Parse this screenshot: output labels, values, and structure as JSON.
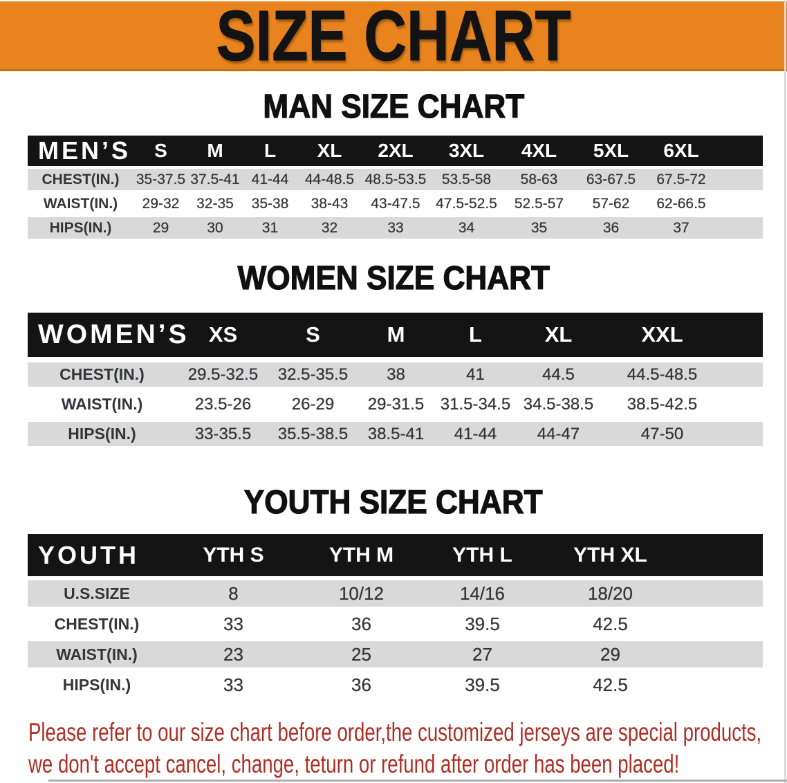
{
  "banner": {
    "title": "SIZE CHART",
    "background": "#e8831e"
  },
  "sections": [
    {
      "id": "man",
      "heading": "MAN SIZE CHART",
      "table": {
        "header": [
          "MEN’S",
          "S",
          "M",
          "L",
          "XL",
          "2XL",
          "3XL",
          "4XL",
          "5XL",
          "6XL"
        ],
        "rows": [
          [
            "CHEST(IN.)",
            "35-37.5",
            "37.5-41",
            "41-44",
            "44-48.5",
            "48.5-53.5",
            "53.5-58",
            "58-63",
            "63-67.5",
            "67.5-72"
          ],
          [
            "WAIST(IN.)",
            "29-32",
            "32-35",
            "35-38",
            "38-43",
            "43-47.5",
            "47.5-52.5",
            "52.5-57",
            "57-62",
            "62-66.5"
          ],
          [
            "HIPS(IN.)",
            "29",
            "30",
            "31",
            "32",
            "33",
            "34",
            "35",
            "36",
            "37"
          ]
        ]
      }
    },
    {
      "id": "women",
      "heading": "WOMEN SIZE CHART",
      "table": {
        "header": [
          "WOMEN’S",
          "XS",
          "S",
          "M",
          "L",
          "XL",
          "XXL"
        ],
        "rows": [
          [
            "CHEST(IN.)",
            "29.5-32.5",
            "32.5-35.5",
            "38",
            "41",
            "44.5",
            "44.5-48.5"
          ],
          [
            "WAIST(IN.)",
            "23.5-26",
            "26-29",
            "29-31.5",
            "31.5-34.5",
            "34.5-38.5",
            "38.5-42.5"
          ],
          [
            "HIPS(IN.)",
            "33-35.5",
            "35.5-38.5",
            "38.5-41",
            "41-44",
            "44-47",
            "47-50"
          ]
        ]
      }
    },
    {
      "id": "youth",
      "heading": "YOUTH SIZE CHART",
      "table": {
        "header": [
          "YOUTH",
          "YTH S",
          "YTH M",
          "YTH L",
          "YTH XL"
        ],
        "rows": [
          [
            "U.S.SIZE",
            "8",
            "10/12",
            "14/16",
            "18/20"
          ],
          [
            "CHEST(IN.)",
            "33",
            "36",
            "39.5",
            "42.5"
          ],
          [
            "WAIST(IN.)",
            "23",
            "25",
            "27",
            "29"
          ],
          [
            "HIPS(IN.)",
            "33",
            "36",
            "39.5",
            "42.5"
          ]
        ]
      }
    }
  ],
  "footer": {
    "line1": "Please refer to our size chart before order,the customized jerseys are special products,",
    "line2": "we don't accept cancel, change, teturn or refund after order has been placed!",
    "color": "#ae2e25"
  },
  "colors": {
    "banner_bg": "#e8831e",
    "table_header_bg": "#141414",
    "row_stripe": "#d9d9d9",
    "heading_text": "#101010"
  }
}
